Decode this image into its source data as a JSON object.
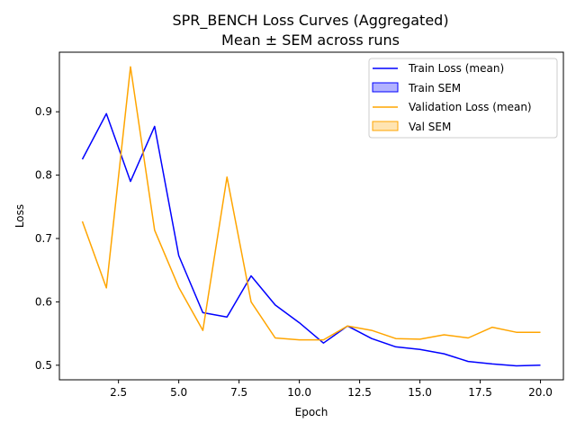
{
  "chart_data": {
    "type": "line",
    "title": "SPR_BENCH Loss Curves (Aggregated)",
    "subtitle": "Mean ± SEM across runs",
    "xlabel": "Epoch",
    "ylabel": "Loss",
    "xlim": [
      0.05,
      20.95
    ],
    "ylim": [
      0.477,
      0.994
    ],
    "xticks": [
      2.5,
      5.0,
      7.5,
      10.0,
      12.5,
      15.0,
      17.5,
      20.0
    ],
    "xtick_labels": [
      "2.5",
      "5.0",
      "7.5",
      "10.0",
      "12.5",
      "15.0",
      "17.5",
      "20.0"
    ],
    "yticks": [
      0.5,
      0.6,
      0.7,
      0.8,
      0.9
    ],
    "ytick_labels": [
      "0.5",
      "0.6",
      "0.7",
      "0.8",
      "0.9"
    ],
    "grid": false,
    "legend_position": "top-right",
    "x": [
      1,
      2,
      3,
      4,
      5,
      6,
      7,
      8,
      9,
      10,
      11,
      12,
      13,
      14,
      15,
      16,
      17,
      18,
      19,
      20
    ],
    "series": [
      {
        "name": "Train Loss (mean)",
        "color": "#0000ff",
        "values": [
          0.825,
          0.897,
          0.79,
          0.877,
          0.673,
          0.583,
          0.576,
          0.641,
          0.595,
          0.567,
          0.535,
          0.562,
          0.542,
          0.529,
          0.525,
          0.518,
          0.506,
          0.502,
          0.499,
          0.5
        ]
      },
      {
        "name": "Validation Loss (mean)",
        "color": "#ffa500",
        "values": [
          0.727,
          0.622,
          0.971,
          0.713,
          0.623,
          0.555,
          0.797,
          0.6,
          0.543,
          0.54,
          0.54,
          0.562,
          0.555,
          0.542,
          0.541,
          0.548,
          0.543,
          0.56,
          0.552,
          0.552
        ]
      }
    ],
    "bands": [
      {
        "name": "Train SEM",
        "color": "#0000ff"
      },
      {
        "name": "Val SEM",
        "color": "#ffa500"
      }
    ]
  }
}
